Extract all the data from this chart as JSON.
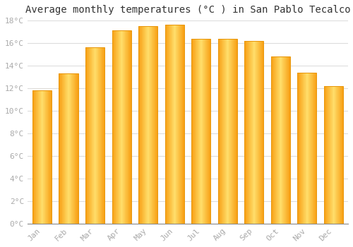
{
  "title": "Average monthly temperatures (°C ) in San Pablo Tecalco",
  "months": [
    "Jan",
    "Feb",
    "Mar",
    "Apr",
    "May",
    "Jun",
    "Jul",
    "Aug",
    "Sep",
    "Oct",
    "Nov",
    "Dec"
  ],
  "temperatures": [
    11.8,
    13.3,
    15.6,
    17.1,
    17.5,
    17.6,
    16.4,
    16.4,
    16.2,
    14.8,
    13.4,
    12.2
  ],
  "bar_color_center": "#FFD966",
  "bar_color_edge": "#F0A500",
  "ylim": [
    0,
    18
  ],
  "yticks": [
    0,
    2,
    4,
    6,
    8,
    10,
    12,
    14,
    16,
    18
  ],
  "ytick_labels": [
    "0°C",
    "2°C",
    "4°C",
    "6°C",
    "8°C",
    "10°C",
    "12°C",
    "14°C",
    "16°C",
    "18°C"
  ],
  "background_color": "#ffffff",
  "grid_color": "#dddddd",
  "title_fontsize": 10,
  "tick_fontsize": 8,
  "tick_color": "#aaaaaa",
  "bar_outline_color": "#E8960A"
}
